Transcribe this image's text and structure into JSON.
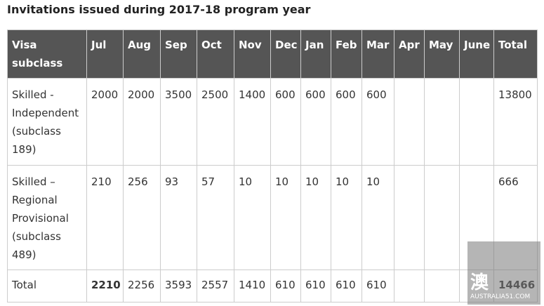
{
  "title": "Invitations issued during 2017-18 program year",
  "table": {
    "header": [
      "Visa subclass",
      "Jul",
      "Aug",
      "Sep",
      "Oct",
      "Nov",
      "Dec",
      "Jan",
      "Feb",
      "Mar",
      "Apr",
      "May",
      "June",
      "Total"
    ],
    "rows": [
      [
        "Skilled - Independent (subclass 189)",
        "2000",
        "2000",
        "3500",
        "2500",
        "1400",
        "600",
        "600",
        "600",
        "600",
        null,
        null,
        null,
        "13800"
      ],
      [
        "Skilled – Regional Provisional (subclass 489)",
        "210",
        "256",
        "93",
        "57",
        "10",
        "10",
        "10",
        "10",
        "10",
        null,
        null,
        null,
        "666"
      ],
      [
        "Total",
        "2210",
        "2256",
        "3593",
        "2557",
        "1410",
        "610",
        "610",
        "610",
        "610",
        null,
        null,
        null,
        "14466"
      ]
    ]
  },
  "watermark": {
    "glyph": "澳",
    "site": "AUSTRALIA51.COM"
  }
}
